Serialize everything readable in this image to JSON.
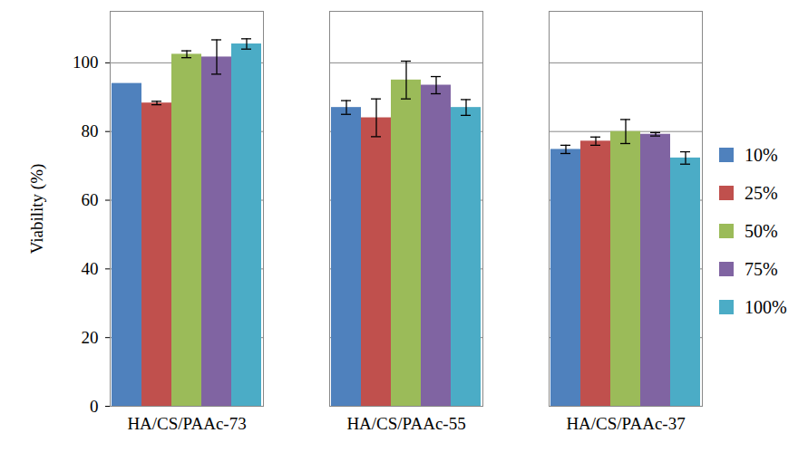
{
  "chart_data": {
    "type": "bar",
    "y_label": "Viability (%)",
    "categories": [
      "HA/CS/PAAc-73",
      "HA/CS/PAAc-55",
      "HA/CS/PAAc-37"
    ],
    "series": [
      {
        "name": "10%",
        "color": "#4F81BD",
        "values": [
          94,
          87,
          74.8
        ],
        "errors": [
          null,
          2,
          1.2
        ]
      },
      {
        "name": "25%",
        "color": "#C0504D",
        "values": [
          88.3,
          84,
          77.2
        ],
        "errors": [
          0.5,
          5.5,
          1.2
        ]
      },
      {
        "name": "50%",
        "color": "#9BBB59",
        "values": [
          102.5,
          95,
          80
        ],
        "errors": [
          1,
          5.5,
          3.5
        ]
      },
      {
        "name": "75%",
        "color": "#8064A2",
        "values": [
          101.7,
          93.5,
          79.2
        ],
        "errors": [
          5,
          2.5,
          0.5
        ]
      },
      {
        "name": "100%",
        "color": "#4BACC6",
        "values": [
          105.5,
          87,
          72.3
        ],
        "errors": [
          1.5,
          2.3,
          1.8
        ]
      }
    ],
    "ylim": [
      0,
      115
    ],
    "yticks": [
      0,
      20,
      40,
      60,
      80,
      100
    ],
    "grid": true,
    "legend": "right"
  }
}
